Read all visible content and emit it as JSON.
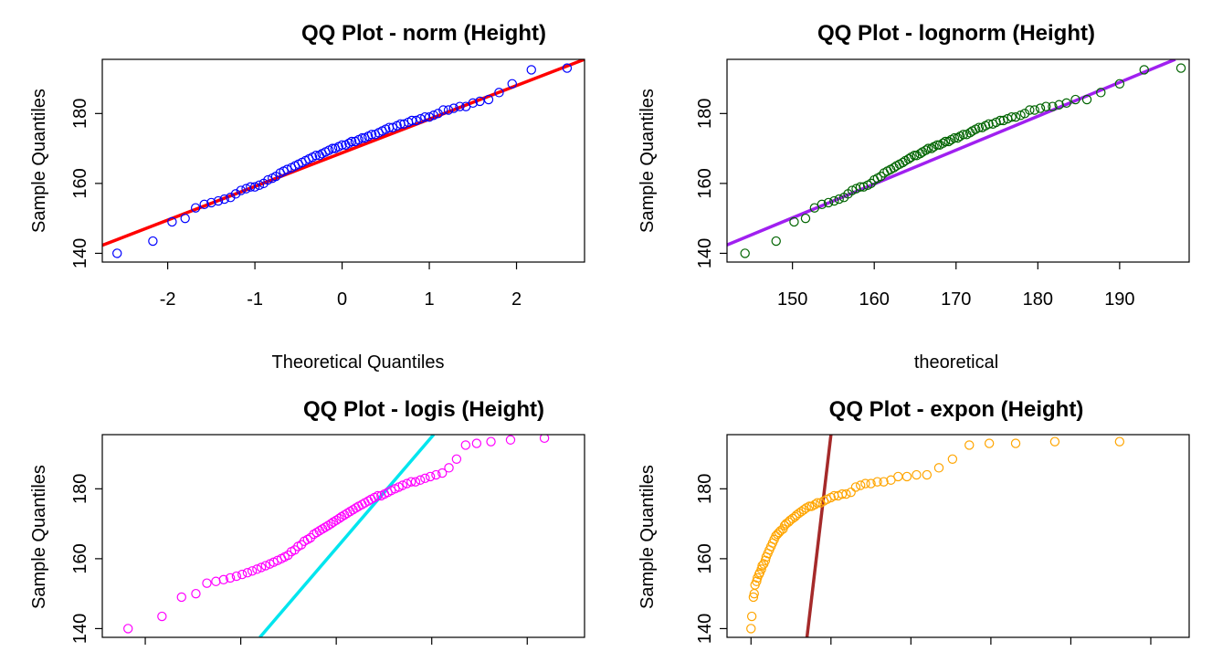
{
  "chart_data": [
    {
      "type": "scatter",
      "title": "QQ Plot - norm (Height)",
      "xlabel": "Theoretical Quantiles",
      "ylabel": "Sample Quantiles",
      "xlim": [
        -2.75,
        2.78
      ],
      "ylim": [
        137.5,
        195.5
      ],
      "xticks": [
        -2,
        -1,
        0,
        1,
        2
      ],
      "xtick_labels": [
        "-2",
        "-1",
        "0",
        "1",
        "2"
      ],
      "yticks": [
        140,
        160,
        180
      ],
      "ytick_labels": [
        "140",
        "160",
        "180"
      ],
      "point_color": "#0000ff",
      "line_color": "#ff0000",
      "x": [
        -2.58,
        -2.17,
        -1.95,
        -1.8,
        -1.68,
        -1.58,
        -1.5,
        -1.42,
        -1.35,
        -1.28,
        -1.22,
        -1.16,
        -1.1,
        -1.05,
        -1.0,
        -0.95,
        -0.9,
        -0.85,
        -0.8,
        -0.76,
        -0.71,
        -0.67,
        -0.63,
        -0.58,
        -0.54,
        -0.5,
        -0.46,
        -0.42,
        -0.38,
        -0.34,
        -0.3,
        -0.26,
        -0.23,
        -0.19,
        -0.15,
        -0.11,
        -0.08,
        -0.04,
        0.0,
        0.04,
        0.08,
        0.11,
        0.15,
        0.19,
        0.23,
        0.26,
        0.3,
        0.34,
        0.38,
        0.42,
        0.46,
        0.5,
        0.54,
        0.58,
        0.63,
        0.67,
        0.71,
        0.76,
        0.8,
        0.85,
        0.9,
        0.95,
        1.0,
        1.05,
        1.1,
        1.16,
        1.22,
        1.28,
        1.35,
        1.42,
        1.5,
        1.58,
        1.68,
        1.8,
        1.95,
        2.17,
        2.58
      ],
      "y": [
        140.0,
        143.5,
        149.0,
        150.0,
        153.0,
        154.0,
        154.5,
        155.0,
        155.5,
        156.0,
        157.0,
        158.0,
        158.5,
        159.0,
        159.0,
        159.5,
        160.0,
        161.0,
        161.5,
        162.0,
        163.0,
        163.5,
        164.0,
        164.5,
        165.0,
        165.5,
        166.0,
        166.5,
        167.0,
        167.5,
        168.0,
        168.0,
        168.5,
        169.0,
        169.5,
        170.0,
        170.0,
        170.5,
        171.0,
        171.0,
        171.5,
        172.0,
        172.0,
        172.5,
        173.0,
        173.0,
        173.5,
        174.0,
        174.0,
        174.5,
        175.0,
        175.5,
        176.0,
        176.0,
        176.5,
        177.0,
        177.0,
        177.5,
        178.0,
        178.0,
        178.5,
        179.0,
        179.0,
        179.5,
        180.0,
        181.0,
        181.0,
        181.5,
        182.0,
        182.0,
        183.0,
        183.5,
        184.0,
        186.0,
        188.5,
        192.5,
        193.0
      ],
      "line": {
        "x1": -2.75,
        "y1": 142.3,
        "x2": 2.78,
        "y2": 195.5
      }
    },
    {
      "type": "scatter",
      "title": "QQ Plot - lognorm (Height)",
      "xlabel": "theoretical",
      "ylabel": "Sample Quantiles",
      "xlim": [
        142.0,
        198.5
      ],
      "ylim": [
        137.5,
        195.5
      ],
      "xticks": [
        150,
        160,
        170,
        180,
        190
      ],
      "xtick_labels": [
        "150",
        "160",
        "170",
        "180",
        "190"
      ],
      "yticks": [
        140,
        160,
        180
      ],
      "ytick_labels": [
        "140",
        "160",
        "180"
      ],
      "point_color": "#006400",
      "line_color": "#a020f0",
      "x": [
        144.2,
        148.0,
        150.2,
        151.6,
        152.7,
        153.6,
        154.4,
        155.1,
        155.7,
        156.3,
        156.8,
        157.3,
        157.8,
        158.3,
        158.7,
        159.2,
        159.6,
        160.0,
        160.4,
        160.8,
        161.2,
        161.6,
        162.0,
        162.4,
        162.7,
        163.1,
        163.5,
        163.8,
        164.2,
        164.5,
        164.9,
        165.2,
        165.6,
        165.9,
        166.3,
        166.6,
        167.0,
        167.3,
        167.7,
        168.0,
        168.4,
        168.7,
        169.1,
        169.4,
        169.8,
        170.2,
        170.5,
        170.9,
        171.3,
        171.7,
        172.0,
        172.4,
        172.8,
        173.2,
        173.6,
        174.0,
        174.5,
        174.9,
        175.4,
        175.8,
        176.3,
        176.8,
        177.3,
        177.9,
        178.4,
        179.0,
        179.6,
        180.3,
        181.0,
        181.8,
        182.6,
        183.5,
        184.6,
        186.0,
        187.7,
        190.0,
        193.0,
        197.5
      ],
      "y": [
        140.0,
        143.5,
        149.0,
        150.0,
        153.0,
        154.0,
        154.5,
        155.0,
        155.5,
        156.0,
        157.0,
        158.0,
        158.5,
        159.0,
        159.0,
        159.5,
        160.0,
        161.0,
        161.5,
        162.0,
        163.0,
        163.5,
        164.0,
        164.5,
        165.0,
        165.5,
        166.0,
        166.5,
        167.0,
        167.5,
        168.0,
        168.0,
        168.5,
        169.0,
        169.5,
        170.0,
        170.0,
        170.5,
        171.0,
        171.0,
        171.5,
        172.0,
        172.0,
        172.5,
        173.0,
        173.0,
        173.5,
        174.0,
        174.0,
        174.5,
        175.0,
        175.5,
        176.0,
        176.0,
        176.5,
        177.0,
        177.0,
        177.5,
        178.0,
        178.0,
        178.5,
        179.0,
        179.0,
        179.5,
        180.0,
        181.0,
        181.0,
        181.5,
        182.0,
        182.0,
        182.5,
        183.0,
        184.0,
        184.0,
        186.0,
        188.5,
        192.5,
        193.0
      ],
      "line": {
        "x1": 142.0,
        "y1": 142.4,
        "x2": 196.8,
        "y2": 195.5
      }
    },
    {
      "type": "scatter",
      "title": "QQ Plot - logis (Height)",
      "xlabel": "",
      "ylabel": "Sample Quantiles",
      "xlim": [
        -4.9,
        5.2
      ],
      "ylim": [
        137.5,
        195.5
      ],
      "xticks": [
        -4,
        -2,
        0,
        2,
        4
      ],
      "xtick_labels": [],
      "yticks": [
        140,
        160,
        180
      ],
      "ytick_labels": [
        "140",
        "160",
        "180"
      ],
      "point_color": "#ff00ff",
      "line_color": "#00e5ee",
      "x": [
        -4.36,
        -3.65,
        -3.24,
        -2.94,
        -2.71,
        -2.52,
        -2.36,
        -2.22,
        -2.09,
        -1.97,
        -1.86,
        -1.76,
        -1.66,
        -1.57,
        -1.48,
        -1.39,
        -1.31,
        -1.23,
        -1.15,
        -1.08,
        -1.01,
        -0.94,
        -0.87,
        -0.8,
        -0.73,
        -0.67,
        -0.6,
        -0.54,
        -0.47,
        -0.41,
        -0.35,
        -0.29,
        -0.23,
        -0.17,
        -0.11,
        -0.06,
        0.0,
        0.06,
        0.11,
        0.17,
        0.23,
        0.29,
        0.35,
        0.41,
        0.47,
        0.54,
        0.6,
        0.67,
        0.73,
        0.8,
        0.87,
        0.94,
        1.01,
        1.08,
        1.15,
        1.23,
        1.31,
        1.39,
        1.48,
        1.57,
        1.66,
        1.76,
        1.86,
        1.97,
        2.09,
        2.22,
        2.36,
        2.52,
        2.71,
        2.94,
        3.24,
        3.65,
        4.36
      ],
      "y": [
        140.0,
        143.5,
        149.0,
        150.0,
        153.0,
        153.5,
        154.0,
        154.5,
        155.0,
        155.5,
        156.0,
        156.5,
        157.0,
        157.5,
        158.0,
        158.5,
        159.0,
        159.5,
        160.0,
        160.5,
        161.0,
        162.0,
        162.5,
        163.5,
        164.0,
        165.0,
        165.5,
        166.0,
        167.0,
        167.5,
        168.0,
        168.5,
        169.0,
        169.5,
        170.0,
        170.5,
        171.0,
        171.5,
        172.0,
        172.5,
        173.0,
        173.5,
        174.0,
        174.5,
        175.0,
        175.5,
        176.0,
        176.5,
        177.0,
        177.5,
        178.0,
        178.0,
        178.5,
        179.0,
        179.5,
        180.0,
        180.5,
        181.0,
        181.5,
        182.0,
        182.0,
        182.5,
        183.0,
        183.5,
        184.0,
        184.5,
        186.0,
        188.5,
        192.5,
        193.0,
        193.5,
        194.0,
        194.5
      ],
      "line": {
        "x1": -1.6,
        "y1": 137.5,
        "x2": 2.04,
        "y2": 195.5
      }
    },
    {
      "type": "scatter",
      "title": "QQ Plot - expon (Height)",
      "xlabel": "",
      "ylabel": "Sample Quantiles",
      "xlim": [
        -0.3,
        5.48
      ],
      "ylim": [
        137.5,
        195.5
      ],
      "xticks": [
        0,
        1,
        2,
        3,
        4,
        5
      ],
      "xtick_labels": [],
      "yticks": [
        140,
        160,
        180
      ],
      "ytick_labels": [
        "140",
        "160",
        "180"
      ],
      "point_color": "#ffa500",
      "line_color": "#a52a2a",
      "x": [
        0.0,
        0.01,
        0.03,
        0.04,
        0.05,
        0.07,
        0.08,
        0.1,
        0.11,
        0.13,
        0.14,
        0.16,
        0.18,
        0.19,
        0.21,
        0.23,
        0.25,
        0.27,
        0.29,
        0.31,
        0.33,
        0.35,
        0.37,
        0.4,
        0.42,
        0.44,
        0.47,
        0.49,
        0.52,
        0.55,
        0.57,
        0.6,
        0.63,
        0.66,
        0.69,
        0.73,
        0.76,
        0.8,
        0.83,
        0.87,
        0.91,
        0.95,
        1.0,
        1.04,
        1.09,
        1.14,
        1.19,
        1.25,
        1.31,
        1.37,
        1.43,
        1.5,
        1.58,
        1.66,
        1.75,
        1.84,
        1.95,
        2.07,
        2.2,
        2.35,
        2.52,
        2.73,
        2.98,
        3.31,
        3.8,
        4.61
      ],
      "y": [
        140.0,
        143.5,
        149.0,
        150.0,
        152.5,
        153.5,
        154.5,
        155.5,
        156.0,
        157.0,
        158.0,
        158.5,
        159.5,
        160.5,
        161.5,
        162.5,
        163.5,
        164.5,
        165.5,
        166.5,
        167.0,
        167.5,
        168.0,
        168.5,
        169.5,
        170.0,
        170.5,
        171.0,
        171.5,
        172.0,
        172.5,
        173.0,
        173.5,
        174.0,
        174.5,
        175.0,
        175.0,
        175.5,
        176.0,
        176.0,
        176.5,
        177.0,
        177.5,
        178.0,
        178.0,
        178.5,
        178.5,
        179.0,
        180.5,
        181.0,
        181.5,
        181.5,
        182.0,
        182.0,
        182.5,
        183.5,
        183.5,
        184.0,
        184.0,
        186.0,
        188.5,
        192.5,
        193.0,
        193.0,
        193.5,
        193.5
      ],
      "line": {
        "x1": 0.7,
        "y1": 137.5,
        "x2": 1.0,
        "y2": 195.5
      }
    }
  ]
}
